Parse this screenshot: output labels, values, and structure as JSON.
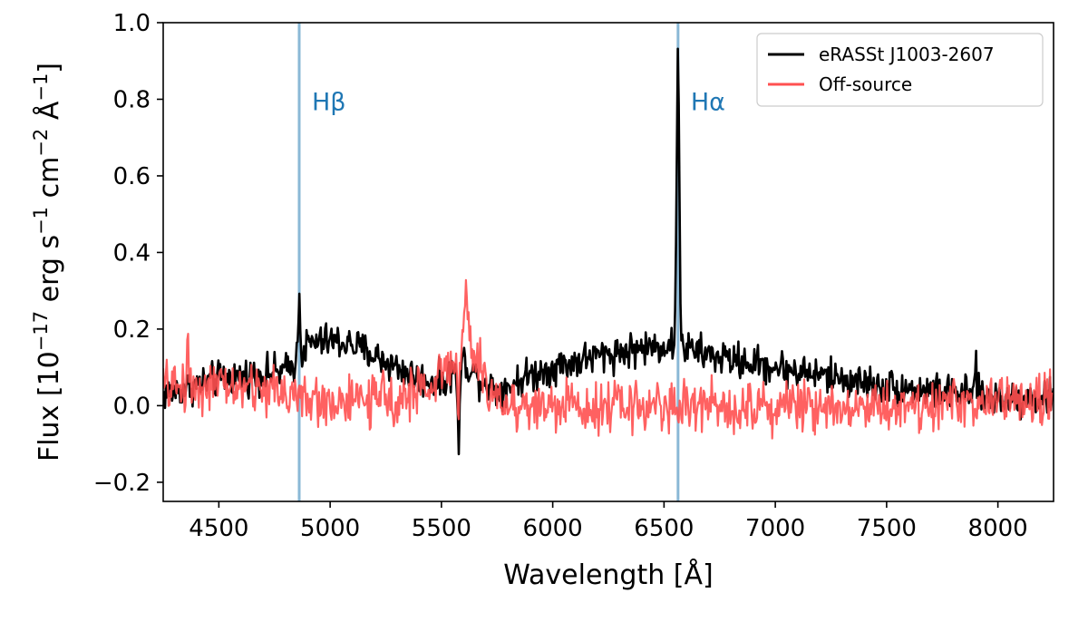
{
  "chart_data": {
    "type": "line",
    "title": "",
    "xlabel": "Wavelength [Å]",
    "ylabel_parts": {
      "prefix": "Flux [10",
      "exp1": "−17",
      "mid1": " erg s",
      "exp2": "−1",
      "mid2": " cm",
      "exp3": "−2",
      "mid3": " Å",
      "exp4": "−1",
      "suffix": "]"
    },
    "xlim": [
      4250,
      8250
    ],
    "ylim": [
      -0.25,
      1.0
    ],
    "xticks": [
      4500,
      5000,
      5500,
      6000,
      6500,
      7000,
      7500,
      8000
    ],
    "xtick_labels": [
      "4500",
      "5000",
      "5500",
      "6000",
      "6500",
      "7000",
      "7500",
      "8000"
    ],
    "yticks": [
      -0.2,
      0.0,
      0.2,
      0.4,
      0.6,
      0.8,
      1.0
    ],
    "ytick_labels": [
      "−0.2",
      "0.0",
      "0.2",
      "0.4",
      "0.6",
      "0.8",
      "1.0"
    ],
    "grid": false,
    "legend_position": "top-right",
    "vertical_lines": [
      {
        "name": "hbeta",
        "x": 4861,
        "label": "Hβ",
        "color": "#8ab8d6",
        "label_color": "#1f77b4"
      },
      {
        "name": "halpha",
        "x": 6563,
        "label": "Hα",
        "color": "#8ab8d6",
        "label_color": "#1f77b4"
      }
    ],
    "series": [
      {
        "name": "eRASSt J1003-2607",
        "color": "#000000",
        "continuum_points": [
          [
            4250,
            0.03
          ],
          [
            4500,
            0.07
          ],
          [
            4800,
            0.09
          ],
          [
            4860,
            0.12
          ],
          [
            4900,
            0.16
          ],
          [
            5000,
            0.17
          ],
          [
            5100,
            0.16
          ],
          [
            5200,
            0.13
          ],
          [
            5300,
            0.1
          ],
          [
            5400,
            0.07
          ],
          [
            5500,
            0.06
          ],
          [
            5600,
            0.12
          ],
          [
            5650,
            0.08
          ],
          [
            5750,
            0.04
          ],
          [
            5900,
            0.08
          ],
          [
            6000,
            0.1
          ],
          [
            6200,
            0.13
          ],
          [
            6400,
            0.15
          ],
          [
            6550,
            0.16
          ],
          [
            6650,
            0.14
          ],
          [
            6800,
            0.12
          ],
          [
            7000,
            0.1
          ],
          [
            7200,
            0.08
          ],
          [
            7500,
            0.05
          ],
          [
            8000,
            0.02
          ],
          [
            8250,
            0.02
          ]
        ],
        "noise": 0.035,
        "features": [
          {
            "center": 6563,
            "amplitude": 0.74,
            "sigma": 6
          },
          {
            "center": 4861,
            "amplitude": 0.16,
            "sigma": 5
          },
          {
            "center": 5577,
            "amplitude": -0.2,
            "sigma": 5
          },
          {
            "center": 7900,
            "amplitude": 0.08,
            "sigma": 5
          }
        ]
      },
      {
        "name": "Off-source",
        "color": "#ff5050",
        "continuum_points": [
          [
            4250,
            0.05
          ],
          [
            4500,
            0.05
          ],
          [
            4800,
            0.04
          ],
          [
            4900,
            0.01
          ],
          [
            5100,
            0.01
          ],
          [
            5300,
            0.02
          ],
          [
            5450,
            0.05
          ],
          [
            5550,
            0.12
          ],
          [
            5620,
            0.18
          ],
          [
            5700,
            0.05
          ],
          [
            5800,
            0.0
          ],
          [
            6000,
            0.0
          ],
          [
            6500,
            0.0
          ],
          [
            7000,
            0.0
          ],
          [
            7500,
            0.0
          ],
          [
            8000,
            0.01
          ],
          [
            8250,
            0.02
          ]
        ],
        "noise": 0.05,
        "features": [
          {
            "center": 5610,
            "amplitude": 0.12,
            "sigma": 6
          },
          {
            "center": 4360,
            "amplitude": 0.12,
            "sigma": 4
          },
          {
            "center": 5577,
            "amplitude": -0.2,
            "sigma": 4
          }
        ]
      }
    ]
  }
}
